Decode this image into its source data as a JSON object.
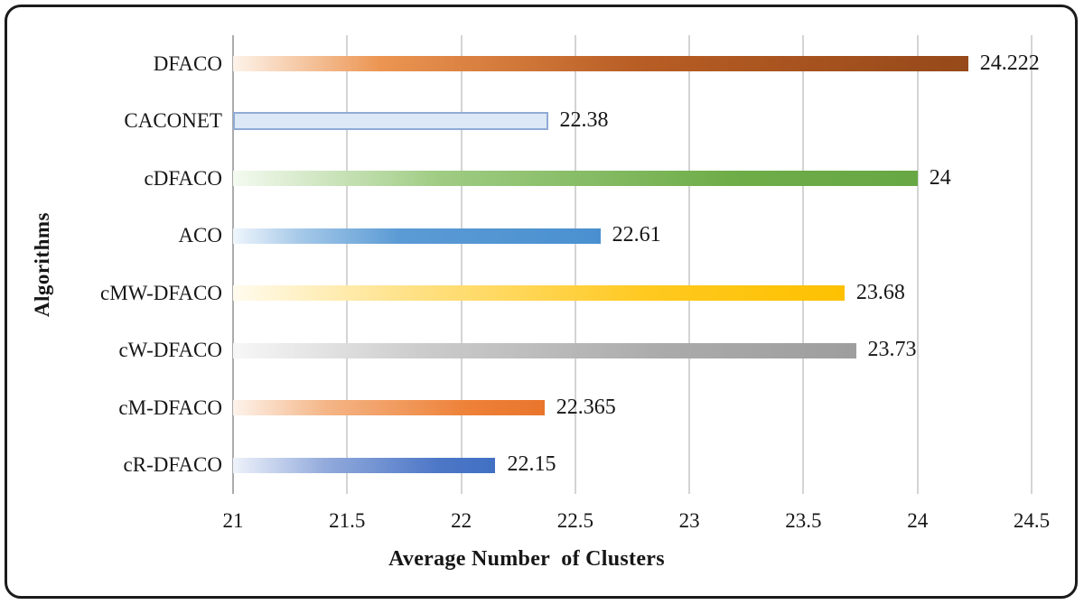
{
  "figure": {
    "background": "#ffffff",
    "border_color": "#1b1b1b",
    "text_color": "#161616",
    "gridline_color": "#d4d4d4",
    "axis_line_color": "#ababab"
  },
  "chart_data": {
    "type": "bar",
    "orientation": "horizontal",
    "title": "",
    "xlabel": "Average Number  of Clusters",
    "ylabel": "Algorithms",
    "xlim": [
      21,
      24.5
    ],
    "xticks": [
      21,
      21.5,
      22,
      22.5,
      23,
      23.5,
      24,
      24.5
    ],
    "xtick_labels": [
      "21",
      "21.5",
      "22",
      "22.5",
      "23",
      "23.5",
      "24",
      "24.5"
    ],
    "grid": true,
    "legend": false,
    "categories": [
      "DFACO",
      "CACONET",
      "cDFACO",
      "ACO",
      "cMW-DFACO",
      "cW-DFACO",
      "cM-DFACO",
      "cR-DFACO"
    ],
    "values": [
      24.222,
      22.38,
      24,
      22.61,
      23.68,
      23.73,
      22.365,
      22.15
    ],
    "value_labels": [
      "24.222",
      "22.38",
      "24",
      "22.61",
      "23.68",
      "23.73",
      "22.365",
      "22.15"
    ],
    "bar_styles": [
      {
        "name": "orange-brown-gradient",
        "stops": [
          "#fdf3ea",
          "#ec9552",
          "#b85d24",
          "#96491a"
        ],
        "positions": [
          0,
          20,
          55,
          100
        ],
        "border": null
      },
      {
        "name": "light-blue-solid",
        "stops": [
          "#dce8f5"
        ],
        "positions": [
          0
        ],
        "border": "#8fabd5"
      },
      {
        "name": "green-gradient",
        "stops": [
          "#f4faf0",
          "#9fcc83",
          "#6fad49",
          "#67a744"
        ],
        "positions": [
          0,
          30,
          72,
          100
        ],
        "border": null
      },
      {
        "name": "blue-gradient",
        "stops": [
          "#eff6fc",
          "#a6c9e8",
          "#5b9bd5",
          "#4a90d0"
        ],
        "positions": [
          0,
          18,
          45,
          100
        ],
        "border": null
      },
      {
        "name": "gold-gradient",
        "stops": [
          "#fffbee",
          "#ffe289",
          "#ffc91f",
          "#fdc101"
        ],
        "positions": [
          0,
          28,
          68,
          100
        ],
        "border": null
      },
      {
        "name": "gray-gradient",
        "stops": [
          "#f7f7f7",
          "#cccccc",
          "#aaaaaa",
          "#9e9e9e"
        ],
        "positions": [
          0,
          30,
          70,
          100
        ],
        "border": null
      },
      {
        "name": "orange-gradient",
        "stops": [
          "#fdf3eb",
          "#f4b586",
          "#ee8138",
          "#e9752c"
        ],
        "positions": [
          0,
          30,
          75,
          100
        ],
        "border": null
      },
      {
        "name": "royal-blue-gradient",
        "stops": [
          "#eef2fa",
          "#93abdc",
          "#4d77c7",
          "#4170c3"
        ],
        "positions": [
          0,
          35,
          78,
          100
        ],
        "border": null
      }
    ]
  }
}
